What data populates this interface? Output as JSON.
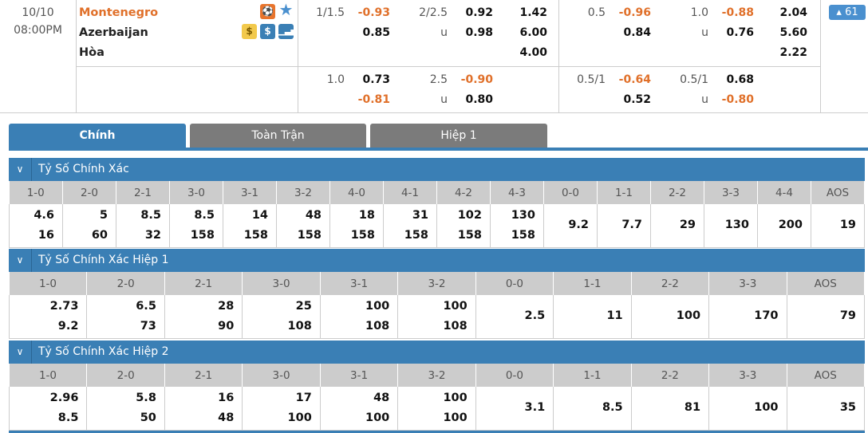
{
  "match": {
    "date": "10/10",
    "time": "08:00PM",
    "home": "Montenegro",
    "away": "Azerbaijan",
    "draw": "Hòa",
    "more_count": "61",
    "icons": [
      "live-icon",
      "star-icon",
      "money-circle-icon",
      "dollar-icon",
      "stats-icon"
    ],
    "accent": "#3a7fb5",
    "negative_color": "#e0702a"
  },
  "odds": {
    "ft": {
      "rows": [
        [
          "1/1.5",
          "-0.93",
          "2/2.5",
          "0.92",
          "1.42",
          "0.5",
          "-0.96",
          "1.0",
          "-0.88",
          "2.04"
        ],
        [
          "",
          "0.85",
          "u",
          "0.98",
          "6.00",
          "",
          "0.84",
          "u",
          "0.76",
          "5.60"
        ],
        [
          "",
          "",
          "",
          "",
          "4.00",
          "",
          "",
          "",
          "",
          "2.22"
        ]
      ]
    },
    "alt": {
      "rows": [
        [
          "1.0",
          "0.73",
          "2.5",
          "-0.90",
          "",
          "0.5/1",
          "-0.64",
          "0.5/1",
          "0.68",
          ""
        ],
        [
          "",
          "-0.81",
          "u",
          "0.80",
          "",
          "",
          "0.52",
          "u",
          "-0.80",
          ""
        ]
      ]
    }
  },
  "tabs": [
    "Chính",
    "Toàn Trận",
    "Hiệp 1"
  ],
  "sections": [
    {
      "title": "Tỷ Số Chính Xác",
      "headers": [
        "1-0",
        "2-0",
        "2-1",
        "3-0",
        "3-1",
        "3-2",
        "4-0",
        "4-1",
        "4-2",
        "4-3",
        "0-0",
        "1-1",
        "2-2",
        "3-3",
        "4-4",
        "AOS"
      ],
      "home": [
        "4.6",
        "5",
        "8.5",
        "8.5",
        "14",
        "48",
        "18",
        "31",
        "102",
        "130",
        "9.2",
        "7.7",
        "29",
        "130",
        "200",
        "19"
      ],
      "away": [
        "16",
        "60",
        "32",
        "158",
        "158",
        "158",
        "158",
        "158",
        "158",
        "158",
        "",
        "",
        "",
        "",
        "",
        ""
      ]
    },
    {
      "title": "Tỷ Số Chính Xác Hiệp 1",
      "headers": [
        "1-0",
        "2-0",
        "2-1",
        "3-0",
        "3-1",
        "3-2",
        "0-0",
        "1-1",
        "2-2",
        "3-3",
        "AOS"
      ],
      "home": [
        "2.73",
        "6.5",
        "28",
        "25",
        "100",
        "100",
        "2.5",
        "11",
        "100",
        "170",
        "79"
      ],
      "away": [
        "9.2",
        "73",
        "90",
        "108",
        "108",
        "108",
        "",
        "",
        "",
        "",
        ""
      ]
    },
    {
      "title": "Tỷ Số Chính Xác Hiệp 2",
      "headers": [
        "1-0",
        "2-0",
        "2-1",
        "3-0",
        "3-1",
        "3-2",
        "0-0",
        "1-1",
        "2-2",
        "3-3",
        "AOS"
      ],
      "home": [
        "2.96",
        "5.8",
        "16",
        "17",
        "48",
        "100",
        "3.1",
        "8.5",
        "81",
        "100",
        "35"
      ],
      "away": [
        "8.5",
        "50",
        "48",
        "100",
        "100",
        "100",
        "",
        "",
        "",
        "",
        ""
      ]
    }
  ]
}
